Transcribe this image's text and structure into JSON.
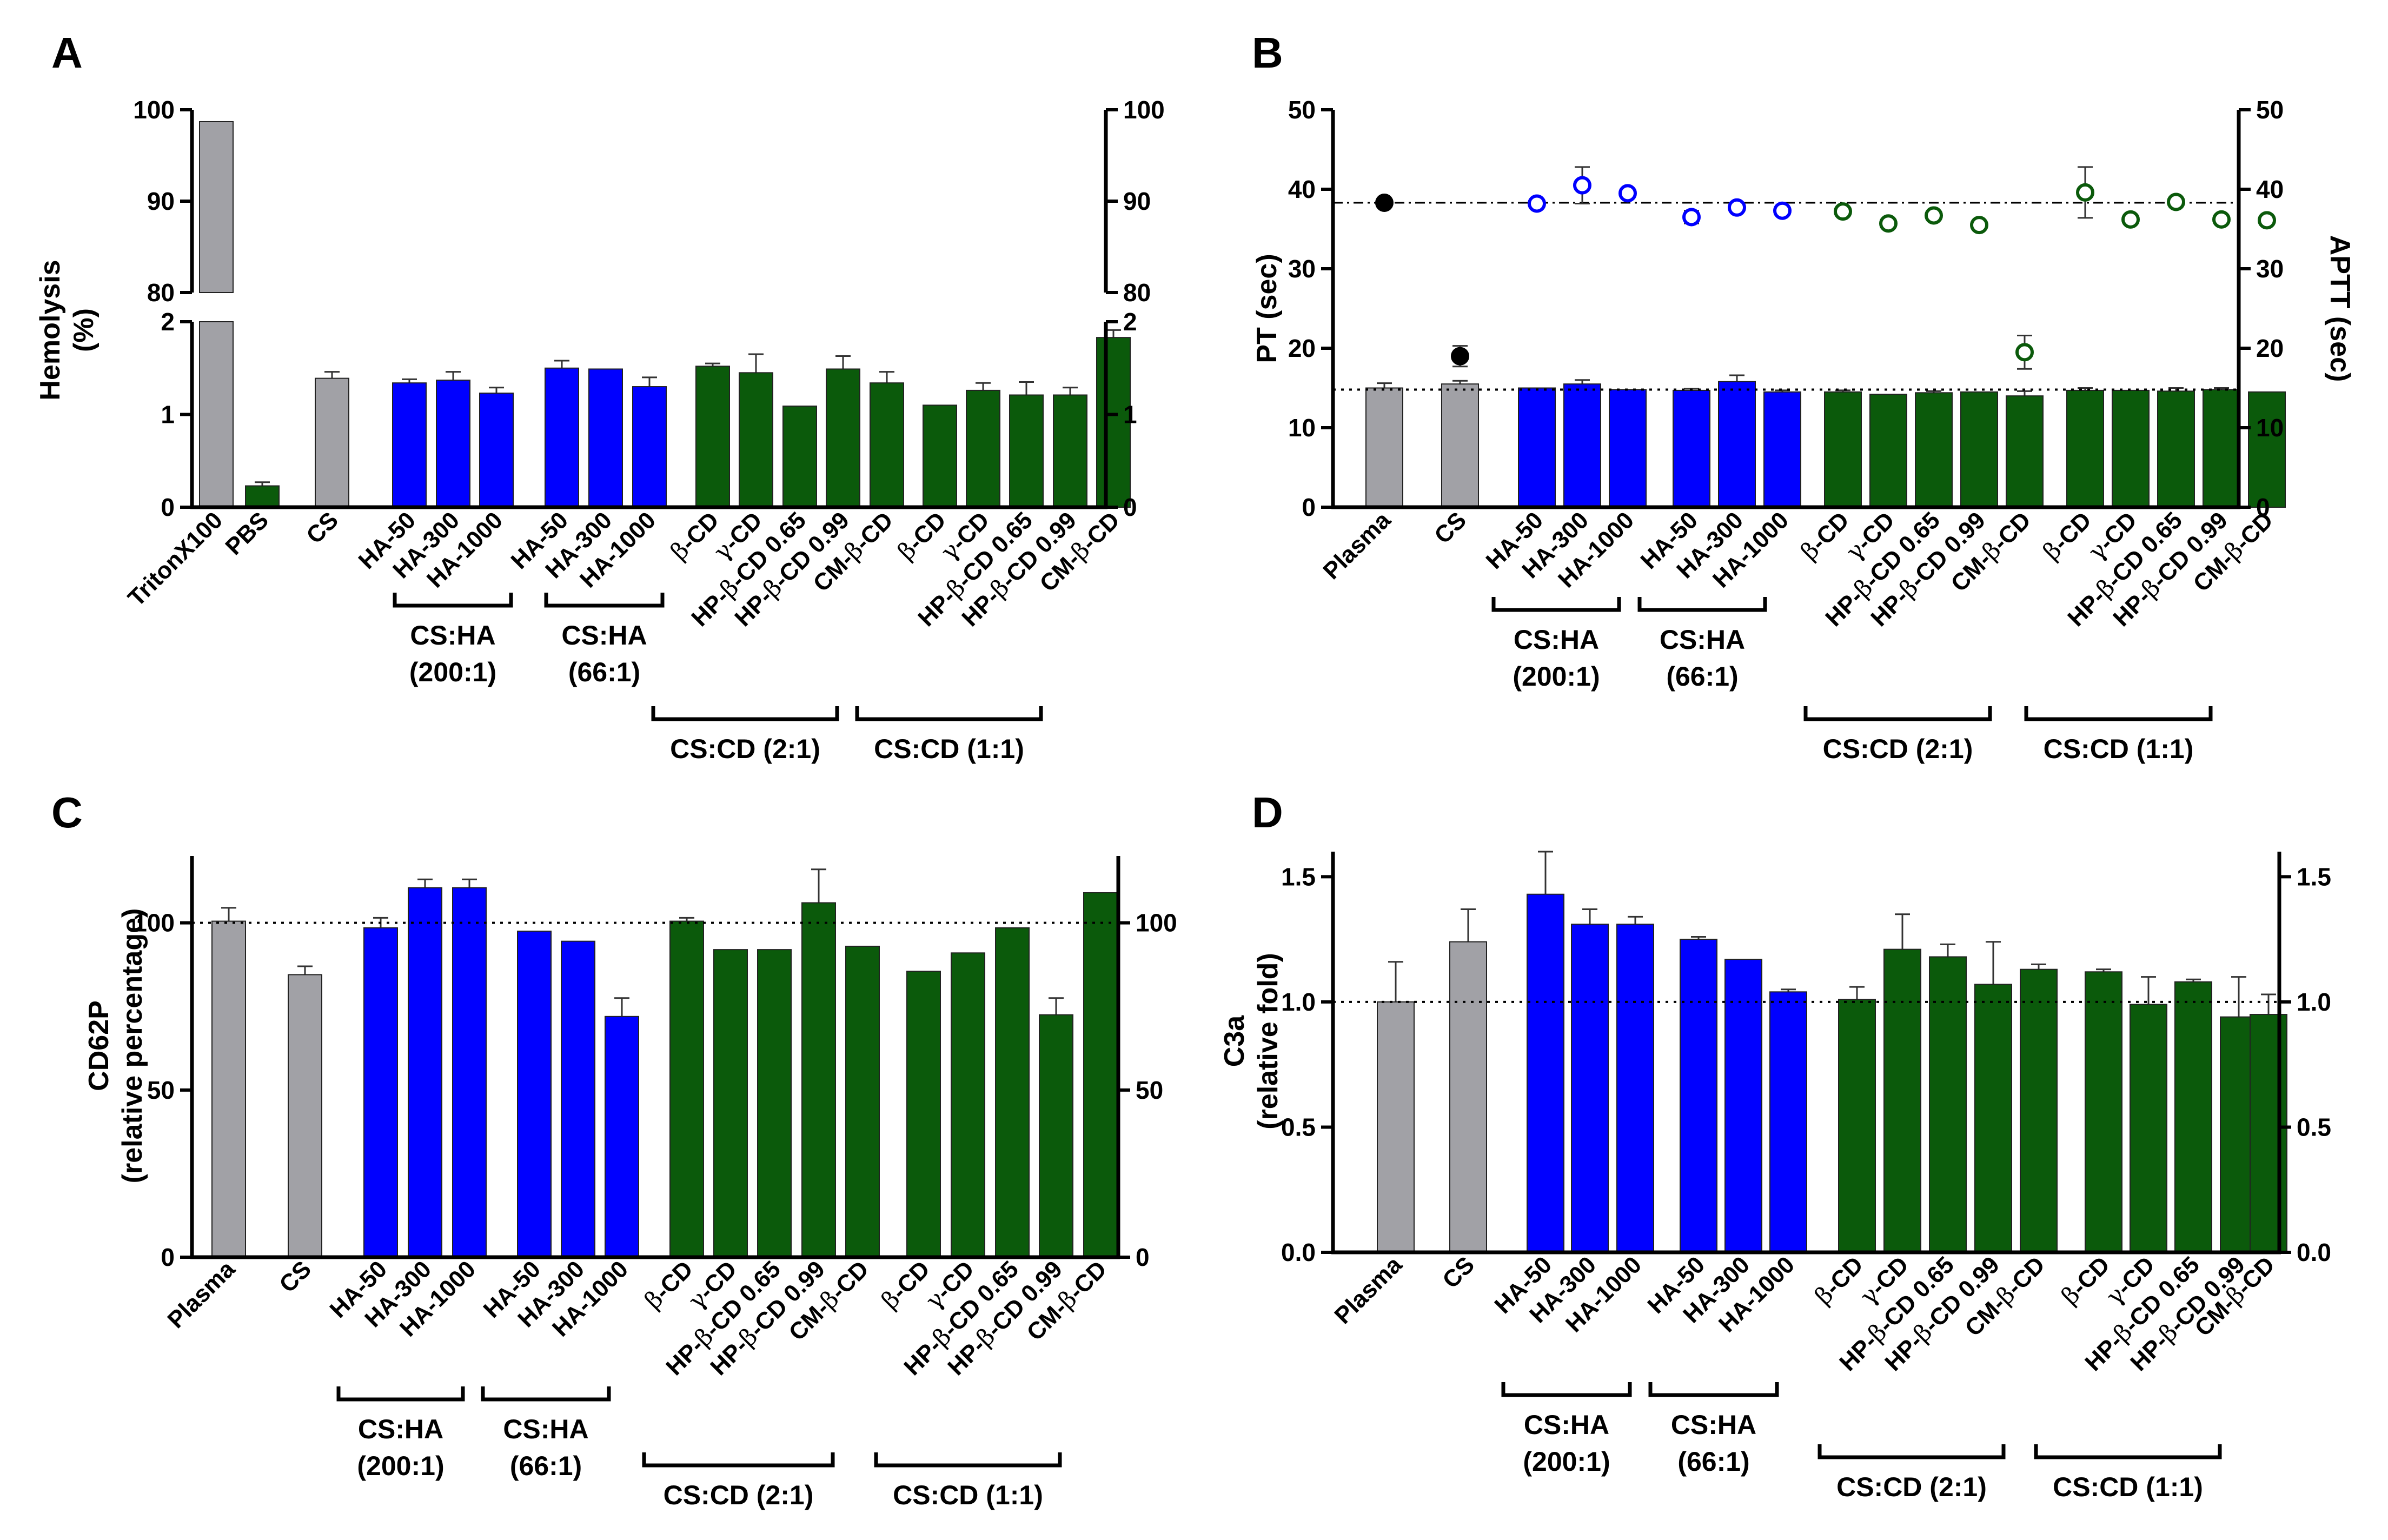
{
  "colors": {
    "gray": "#a1a1a6",
    "blue": "#0000ff",
    "green": "#0b5a0b",
    "black": "#000000"
  },
  "chart_data": [
    {
      "panel": "A",
      "type": "bar",
      "ylabel": [
        "Hemolysis",
        "(%)"
      ],
      "ylim_lower": [
        0,
        2
      ],
      "ylim_upper": [
        80,
        100
      ],
      "yticks_lower": [
        0,
        1,
        2
      ],
      "yticks_upper": [
        80,
        90,
        100
      ],
      "axis_break": true,
      "bars": [
        {
          "label": "TritonX100",
          "value": 98.7,
          "err": 0,
          "color": "gray"
        },
        {
          "label": "PBS",
          "value": 0.23,
          "err": 0.04,
          "color": "green"
        },
        {
          "label": "CS",
          "value": 1.39,
          "err": 0.07,
          "color": "gray"
        },
        {
          "label": "HA-50",
          "value": 1.34,
          "err": 0.04,
          "color": "blue"
        },
        {
          "label": "HA-300",
          "value": 1.37,
          "err": 0.09,
          "color": "blue"
        },
        {
          "label": "HA-1000",
          "value": 1.23,
          "err": 0.06,
          "color": "blue"
        },
        {
          "label": "HA-50",
          "value": 1.5,
          "err": 0.08,
          "color": "blue"
        },
        {
          "label": "HA-300",
          "value": 1.49,
          "err": 0,
          "color": "blue"
        },
        {
          "label": "HA-1000",
          "value": 1.3,
          "err": 0.1,
          "color": "blue"
        },
        {
          "label": "β-CD",
          "value": 1.52,
          "err": 0.03,
          "color": "green"
        },
        {
          "label": "γ-CD",
          "value": 1.45,
          "err": 0.2,
          "color": "green"
        },
        {
          "label": "HP-β-CD 0.65",
          "value": 1.09,
          "err": 0,
          "color": "green"
        },
        {
          "label": "HP-β-CD 0.99",
          "value": 1.49,
          "err": 0.14,
          "color": "green"
        },
        {
          "label": "CM-β-CD",
          "value": 1.34,
          "err": 0.12,
          "color": "green"
        },
        {
          "label": "β-CD",
          "value": 1.1,
          "err": 0,
          "color": "green"
        },
        {
          "label": "γ-CD",
          "value": 1.26,
          "err": 0.08,
          "color": "green"
        },
        {
          "label": "HP-β-CD 0.65",
          "value": 1.21,
          "err": 0.14,
          "color": "green"
        },
        {
          "label": "HP-β-CD 0.99",
          "value": 1.21,
          "err": 0.08,
          "color": "green"
        },
        {
          "label": "CM-β-CD",
          "value": 1.83,
          "err": 0.08,
          "color": "green"
        }
      ],
      "groups": [
        {
          "title": "CS:HA",
          "subtitle": "(200:1)",
          "from": 3,
          "to": 5
        },
        {
          "title": "CS:HA",
          "subtitle": "(66:1)",
          "from": 6,
          "to": 8
        },
        {
          "title": "CS:CD (2:1)",
          "from": 9,
          "to": 13
        },
        {
          "title": "CS:CD (1:1)",
          "from": 14,
          "to": 18
        }
      ]
    },
    {
      "panel": "B",
      "type": "bar+scatter",
      "ylabel": "PT (sec)",
      "ylabel_right": "APTT (sec)",
      "ylim": [
        0,
        50
      ],
      "yticks": [
        0,
        10,
        20,
        30,
        40,
        50
      ],
      "pt_reference": 14.8,
      "aptt_reference": 38.3,
      "bars": [
        {
          "label": "Plasma",
          "value": 15.0,
          "err": 0.6,
          "color": "gray"
        },
        {
          "label": "CS",
          "value": 15.5,
          "err": 0.4,
          "color": "gray"
        },
        {
          "label": "HA-50",
          "value": 15.0,
          "err": 0,
          "color": "blue"
        },
        {
          "label": "HA-300",
          "value": 15.5,
          "err": 0.5,
          "color": "blue"
        },
        {
          "label": "HA-1000",
          "value": 14.8,
          "err": 0,
          "color": "blue"
        },
        {
          "label": "HA-50",
          "value": 14.7,
          "err": 0.2,
          "color": "blue"
        },
        {
          "label": "HA-300",
          "value": 15.8,
          "err": 0.8,
          "color": "blue"
        },
        {
          "label": "HA-1000",
          "value": 14.5,
          "err": 0.2,
          "color": "blue"
        },
        {
          "label": "β-CD",
          "value": 14.5,
          "err": 0.2,
          "color": "green"
        },
        {
          "label": "γ-CD",
          "value": 14.2,
          "err": 0,
          "color": "green"
        },
        {
          "label": "HP-β-CD 0.65",
          "value": 14.4,
          "err": 0.2,
          "color": "green"
        },
        {
          "label": "HP-β-CD 0.99",
          "value": 14.5,
          "err": 0,
          "color": "green"
        },
        {
          "label": "CM-β-CD",
          "value": 14.0,
          "err": 0.6,
          "color": "green"
        },
        {
          "label": "β-CD",
          "value": 14.7,
          "err": 0.3,
          "color": "green"
        },
        {
          "label": "γ-CD",
          "value": 14.7,
          "err": 0,
          "color": "green"
        },
        {
          "label": "HP-β-CD 0.65",
          "value": 14.6,
          "err": 0.4,
          "color": "green"
        },
        {
          "label": "HP-β-CD 0.99",
          "value": 14.8,
          "err": 0.2,
          "color": "green"
        },
        {
          "label": "CM-β-CD",
          "value": 14.5,
          "err": 0,
          "color": "green"
        }
      ],
      "aptt_points": [
        38.3,
        19.0,
        38.2,
        40.5,
        39.5,
        36.5,
        37.7,
        37.3,
        37.2,
        35.7,
        36.7,
        35.5,
        19.5,
        39.6,
        36.2,
        38.4,
        36.2,
        36.1
      ],
      "aptt_err": [
        0,
        1.3,
        0,
        2.3,
        0,
        0.8,
        0,
        0,
        0,
        0,
        0,
        0,
        2.1,
        3.2,
        0,
        0,
        0,
        0
      ],
      "aptt_colors": [
        "black",
        "black",
        "blue",
        "blue",
        "blue",
        "blue",
        "blue",
        "blue",
        "green",
        "green",
        "green",
        "green",
        "green",
        "green",
        "green",
        "green",
        "green",
        "green"
      ],
      "aptt_filled": [
        true,
        true,
        false,
        false,
        false,
        false,
        false,
        false,
        false,
        false,
        false,
        false,
        false,
        false,
        false,
        false,
        false,
        false
      ],
      "groups": [
        {
          "title": "CS:HA",
          "subtitle": "(200:1)",
          "from": 2,
          "to": 4
        },
        {
          "title": "CS:HA",
          "subtitle": "(66:1)",
          "from": 5,
          "to": 7
        },
        {
          "title": "CS:CD (2:1)",
          "from": 8,
          "to": 12
        },
        {
          "title": "CS:CD (1:1)",
          "from": 13,
          "to": 17
        }
      ]
    },
    {
      "panel": "C",
      "type": "bar",
      "ylabel": [
        "CD62P",
        "(relative percentage)"
      ],
      "ylim": [
        0,
        120
      ],
      "yticks": [
        0,
        50,
        100
      ],
      "reference": 100,
      "bars": [
        {
          "label": "Plasma",
          "value": 100.5,
          "err": 4,
          "color": "gray"
        },
        {
          "label": "CS",
          "value": 84.5,
          "err": 2.5,
          "color": "gray"
        },
        {
          "label": "HA-50",
          "value": 98.5,
          "err": 3,
          "color": "blue"
        },
        {
          "label": "HA-300",
          "value": 110.5,
          "err": 2.5,
          "color": "blue"
        },
        {
          "label": "HA-1000",
          "value": 110.5,
          "err": 2.5,
          "color": "blue"
        },
        {
          "label": "HA-50",
          "value": 97.5,
          "err": 0,
          "color": "blue"
        },
        {
          "label": "HA-300",
          "value": 94.5,
          "err": 0,
          "color": "blue"
        },
        {
          "label": "HA-1000",
          "value": 72.0,
          "err": 5.5,
          "color": "blue"
        },
        {
          "label": "β-CD",
          "value": 100.5,
          "err": 1,
          "color": "green"
        },
        {
          "label": "γ-CD",
          "value": 92.0,
          "err": 0,
          "color": "green"
        },
        {
          "label": "HP-β-CD 0.65",
          "value": 92.0,
          "err": 0,
          "color": "green"
        },
        {
          "label": "HP-β-CD 0.99",
          "value": 106.0,
          "err": 10,
          "color": "green"
        },
        {
          "label": "CM-β-CD",
          "value": 93.0,
          "err": 0,
          "color": "green"
        },
        {
          "label": "β-CD",
          "value": 85.5,
          "err": 0,
          "color": "green"
        },
        {
          "label": "γ-CD",
          "value": 91.0,
          "err": 0,
          "color": "green"
        },
        {
          "label": "HP-β-CD 0.65",
          "value": 98.5,
          "err": 0,
          "color": "green"
        },
        {
          "label": "HP-β-CD 0.99",
          "value": 72.5,
          "err": 5,
          "color": "green"
        },
        {
          "label": "CM-β-CD",
          "value": 109.0,
          "err": 0,
          "color": "green"
        }
      ],
      "groups": [
        {
          "title": "CS:HA",
          "subtitle": "(200:1)",
          "from": 2,
          "to": 4
        },
        {
          "title": "CS:HA",
          "subtitle": "(66:1)",
          "from": 5,
          "to": 7
        },
        {
          "title": "CS:CD (2:1)",
          "from": 8,
          "to": 12
        },
        {
          "title": "CS:CD (1:1)",
          "from": 13,
          "to": 17
        }
      ]
    },
    {
      "panel": "D",
      "type": "bar",
      "ylabel": [
        "C3a",
        "(relative fold)"
      ],
      "ylim": [
        0,
        1.6
      ],
      "yticks": [
        0.0,
        0.5,
        1.0,
        1.5
      ],
      "reference": 1.0,
      "bars": [
        {
          "label": "Plasma",
          "value": 1.0,
          "err": 0.16,
          "color": "gray"
        },
        {
          "label": "CS",
          "value": 1.24,
          "err": 0.13,
          "color": "gray"
        },
        {
          "label": "HA-50",
          "value": 1.43,
          "err": 0.17,
          "color": "blue"
        },
        {
          "label": "HA-300",
          "value": 1.31,
          "err": 0.06,
          "color": "blue"
        },
        {
          "label": "HA-1000",
          "value": 1.31,
          "err": 0.03,
          "color": "blue"
        },
        {
          "label": "HA-50",
          "value": 1.25,
          "err": 0.01,
          "color": "blue"
        },
        {
          "label": "HA-300",
          "value": 1.17,
          "err": 0,
          "color": "blue"
        },
        {
          "label": "HA-1000",
          "value": 1.04,
          "err": 0.01,
          "color": "blue"
        },
        {
          "label": "β-CD",
          "value": 1.01,
          "err": 0.05,
          "color": "green"
        },
        {
          "label": "γ-CD",
          "value": 1.21,
          "err": 0.14,
          "color": "green"
        },
        {
          "label": "HP-β-CD 0.65",
          "value": 1.18,
          "err": 0.05,
          "color": "green"
        },
        {
          "label": "HP-β-CD 0.99",
          "value": 1.07,
          "err": 0.17,
          "color": "green"
        },
        {
          "label": "CM-β-CD",
          "value": 1.13,
          "err": 0.02,
          "color": "green"
        },
        {
          "label": "β-CD",
          "value": 1.12,
          "err": 0.01,
          "color": "green"
        },
        {
          "label": "γ-CD",
          "value": 0.99,
          "err": 0.11,
          "color": "green"
        },
        {
          "label": "HP-β-CD 0.65",
          "value": 1.08,
          "err": 0.01,
          "color": "green"
        },
        {
          "label": "HP-β-CD 0.99",
          "value": 0.94,
          "err": 0.16,
          "color": "green"
        },
        {
          "label": "CM-β-CD",
          "value": 0.95,
          "err": 0.08,
          "color": "green"
        }
      ],
      "groups": [
        {
          "title": "CS:HA",
          "subtitle": "(200:1)",
          "from": 2,
          "to": 4
        },
        {
          "title": "CS:HA",
          "subtitle": "(66:1)",
          "from": 5,
          "to": 7
        },
        {
          "title": "CS:CD (2:1)",
          "from": 8,
          "to": 12
        },
        {
          "title": "CS:CD (1:1)",
          "from": 13,
          "to": 17
        }
      ]
    }
  ]
}
